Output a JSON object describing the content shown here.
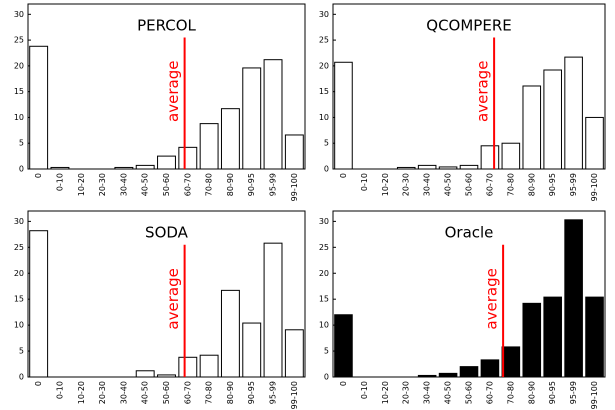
{
  "chart_data": [
    {
      "type": "bar",
      "title": "PERCOL",
      "categories": [
        "0",
        "0-10",
        "10-20",
        "20-30",
        "30-40",
        "40-50",
        "50-60",
        "60-70",
        "70-80",
        "80-90",
        "90-95",
        "95-99",
        "99-100"
      ],
      "values": [
        23.8,
        0.3,
        0,
        0,
        0.3,
        0.7,
        2.5,
        4.2,
        8.8,
        11.7,
        19.6,
        21.2,
        6.6
      ],
      "color": "#ffffff",
      "edgecolor": "#000000",
      "ylim": [
        0,
        32
      ],
      "yticks": [
        0,
        5,
        10,
        15,
        20,
        25,
        30
      ],
      "average_line": {
        "label": "average",
        "x": 7.35,
        "color": "#ff0000"
      }
    },
    {
      "type": "bar",
      "title": "QCOMPERE",
      "categories": [
        "0",
        "0-10",
        "10-20",
        "20-30",
        "30-40",
        "40-50",
        "50-60",
        "60-70",
        "70-80",
        "80-90",
        "90-95",
        "95-99",
        "99-100"
      ],
      "values": [
        20.7,
        0,
        0,
        0.3,
        0.7,
        0.4,
        0.7,
        4.5,
        5.0,
        16.1,
        19.2,
        21.7,
        10.0
      ],
      "color": "#ffffff",
      "edgecolor": "#000000",
      "ylim": [
        0,
        32
      ],
      "yticks": [
        0,
        5,
        10,
        15,
        20,
        25,
        30
      ],
      "average_line": {
        "label": "average",
        "x": 7.7,
        "color": "#ff0000"
      }
    },
    {
      "type": "bar",
      "title": "SODA",
      "categories": [
        "0",
        "0-10",
        "10-20",
        "20-30",
        "30-40",
        "40-50",
        "50-60",
        "60-70",
        "70-80",
        "80-90",
        "90-95",
        "95-99",
        "99-100"
      ],
      "values": [
        28.2,
        0,
        0,
        0,
        0,
        1.2,
        0.4,
        3.8,
        4.2,
        16.7,
        10.4,
        25.8,
        9.1
      ],
      "color": "#ffffff",
      "edgecolor": "#000000",
      "ylim": [
        0,
        32
      ],
      "yticks": [
        0,
        5,
        10,
        15,
        20,
        25,
        30
      ],
      "average_line": {
        "label": "average",
        "x": 7.35,
        "color": "#ff0000"
      }
    },
    {
      "type": "bar",
      "title": "Oracle",
      "categories": [
        "0",
        "0-10",
        "10-20",
        "20-30",
        "30-40",
        "40-50",
        "50-60",
        "60-70",
        "70-80",
        "80-90",
        "90-95",
        "95-99",
        "99-100"
      ],
      "values": [
        12.0,
        0,
        0,
        0,
        0.3,
        0.7,
        2.0,
        3.3,
        5.8,
        14.2,
        15.4,
        30.3,
        15.4
      ],
      "color": "#000000",
      "edgecolor": "#000000",
      "ylim": [
        0,
        32
      ],
      "yticks": [
        0,
        5,
        10,
        15,
        20,
        25,
        30
      ],
      "average_line": {
        "label": "average",
        "x": 8.13,
        "color": "#ff0000"
      }
    }
  ]
}
